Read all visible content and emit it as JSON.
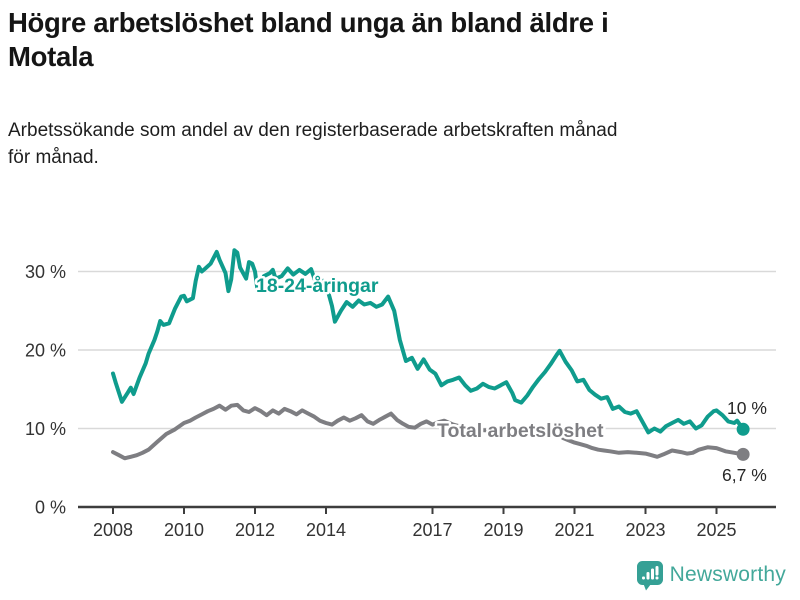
{
  "header": {
    "title_lines": [
      "Högre arbetslöshet bland unga än bland äldre i",
      "Motala"
    ],
    "subtitle_lines": [
      "Arbetssökande som andel av den registerbaserade arbetskraften månad",
      "för månad."
    ]
  },
  "chart_data": {
    "type": "line",
    "title": "Högre arbetslöshet bland unga än bland äldre i Motala",
    "subtitle": "Arbetssökande som andel av den registerbaserade arbetskraften månad för månad.",
    "grid": "horizontal",
    "legend_position": "inline-labels",
    "x_axis": {
      "ticks": [
        2008,
        2010,
        2012,
        2014,
        2017,
        2019,
        2021,
        2023,
        2025
      ],
      "range": [
        2007.0,
        2026.7
      ]
    },
    "y_axis": {
      "ticks": [
        0,
        10,
        20,
        30
      ],
      "tick_labels": [
        "0 %",
        "10 %",
        "20 %",
        "30 %"
      ],
      "range": [
        0,
        34
      ],
      "unit": "%"
    },
    "series": [
      {
        "id": "young",
        "name": "18-24-åringar",
        "color": "#0f9c8d",
        "end_label": "10 %",
        "points": [
          [
            2008.0,
            17.0
          ],
          [
            2008.08,
            15.8
          ],
          [
            2008.25,
            13.4
          ],
          [
            2008.42,
            14.6
          ],
          [
            2008.5,
            15.2
          ],
          [
            2008.58,
            14.4
          ],
          [
            2008.75,
            16.5
          ],
          [
            2008.92,
            18.3
          ],
          [
            2009.0,
            19.5
          ],
          [
            2009.17,
            21.3
          ],
          [
            2009.25,
            22.4
          ],
          [
            2009.33,
            23.7
          ],
          [
            2009.42,
            23.2
          ],
          [
            2009.58,
            23.4
          ],
          [
            2009.75,
            25.3
          ],
          [
            2009.92,
            26.8
          ],
          [
            2010.0,
            26.9
          ],
          [
            2010.08,
            26.2
          ],
          [
            2010.25,
            26.6
          ],
          [
            2010.33,
            28.8
          ],
          [
            2010.42,
            30.6
          ],
          [
            2010.5,
            30.0
          ],
          [
            2010.58,
            30.3
          ],
          [
            2010.75,
            31.0
          ],
          [
            2010.92,
            32.5
          ],
          [
            2011.0,
            31.5
          ],
          [
            2011.17,
            29.8
          ],
          [
            2011.25,
            27.5
          ],
          [
            2011.33,
            29.0
          ],
          [
            2011.42,
            32.7
          ],
          [
            2011.5,
            32.4
          ],
          [
            2011.58,
            30.5
          ],
          [
            2011.75,
            29.1
          ],
          [
            2011.83,
            31.2
          ],
          [
            2011.92,
            31.0
          ],
          [
            2012.0,
            30.0
          ],
          [
            2012.08,
            27.4
          ],
          [
            2012.25,
            29.4
          ],
          [
            2012.42,
            29.8
          ],
          [
            2012.5,
            30.2
          ],
          [
            2012.58,
            29.1
          ],
          [
            2012.75,
            29.4
          ],
          [
            2012.92,
            30.4
          ],
          [
            2013.08,
            29.6
          ],
          [
            2013.25,
            30.2
          ],
          [
            2013.42,
            29.7
          ],
          [
            2013.58,
            30.3
          ],
          [
            2013.75,
            28.1
          ],
          [
            2013.92,
            28.8
          ],
          [
            2014.0,
            28.4
          ],
          [
            2014.17,
            25.6
          ],
          [
            2014.25,
            23.6
          ],
          [
            2014.42,
            25.0
          ],
          [
            2014.58,
            26.1
          ],
          [
            2014.75,
            25.5
          ],
          [
            2014.92,
            26.3
          ],
          [
            2015.08,
            25.8
          ],
          [
            2015.25,
            26.0
          ],
          [
            2015.42,
            25.5
          ],
          [
            2015.58,
            25.8
          ],
          [
            2015.75,
            26.8
          ],
          [
            2015.92,
            25.0
          ],
          [
            2016.08,
            21.3
          ],
          [
            2016.25,
            18.6
          ],
          [
            2016.42,
            19.0
          ],
          [
            2016.58,
            17.6
          ],
          [
            2016.75,
            18.8
          ],
          [
            2016.92,
            17.5
          ],
          [
            2017.08,
            17.0
          ],
          [
            2017.25,
            15.5
          ],
          [
            2017.42,
            16.0
          ],
          [
            2017.58,
            16.2
          ],
          [
            2017.75,
            16.5
          ],
          [
            2017.92,
            15.5
          ],
          [
            2018.08,
            14.8
          ],
          [
            2018.25,
            15.1
          ],
          [
            2018.42,
            15.7
          ],
          [
            2018.58,
            15.3
          ],
          [
            2018.75,
            15.1
          ],
          [
            2018.92,
            15.5
          ],
          [
            2019.08,
            15.9
          ],
          [
            2019.25,
            14.5
          ],
          [
            2019.33,
            13.6
          ],
          [
            2019.5,
            13.3
          ],
          [
            2019.67,
            14.2
          ],
          [
            2019.83,
            15.3
          ],
          [
            2020.0,
            16.3
          ],
          [
            2020.17,
            17.2
          ],
          [
            2020.33,
            18.2
          ],
          [
            2020.5,
            19.4
          ],
          [
            2020.58,
            19.9
          ],
          [
            2020.75,
            18.5
          ],
          [
            2020.92,
            17.4
          ],
          [
            2021.08,
            16.0
          ],
          [
            2021.25,
            16.2
          ],
          [
            2021.42,
            14.9
          ],
          [
            2021.58,
            14.3
          ],
          [
            2021.75,
            13.8
          ],
          [
            2021.92,
            14.0
          ],
          [
            2022.08,
            12.5
          ],
          [
            2022.25,
            12.8
          ],
          [
            2022.42,
            12.1
          ],
          [
            2022.58,
            11.9
          ],
          [
            2022.75,
            12.2
          ],
          [
            2022.92,
            10.8
          ],
          [
            2023.08,
            9.5
          ],
          [
            2023.25,
            10.0
          ],
          [
            2023.42,
            9.6
          ],
          [
            2023.58,
            10.3
          ],
          [
            2023.75,
            10.7
          ],
          [
            2023.92,
            11.1
          ],
          [
            2024.08,
            10.6
          ],
          [
            2024.25,
            10.9
          ],
          [
            2024.42,
            10.0
          ],
          [
            2024.58,
            10.4
          ],
          [
            2024.75,
            11.5
          ],
          [
            2024.92,
            12.2
          ],
          [
            2025.0,
            12.3
          ],
          [
            2025.17,
            11.7
          ],
          [
            2025.33,
            10.9
          ],
          [
            2025.5,
            10.7
          ],
          [
            2025.58,
            11.0
          ],
          [
            2025.75,
            9.9
          ]
        ]
      },
      {
        "id": "total",
        "name": "Total arbetslöshet",
        "color": "#7e7e82",
        "end_label": "6,7 %",
        "points": [
          [
            2008.0,
            7.0
          ],
          [
            2008.17,
            6.6
          ],
          [
            2008.33,
            6.2
          ],
          [
            2008.5,
            6.4
          ],
          [
            2008.67,
            6.6
          ],
          [
            2008.83,
            6.9
          ],
          [
            2009.0,
            7.3
          ],
          [
            2009.25,
            8.3
          ],
          [
            2009.5,
            9.3
          ],
          [
            2009.75,
            9.9
          ],
          [
            2010.0,
            10.7
          ],
          [
            2010.17,
            11.0
          ],
          [
            2010.33,
            11.4
          ],
          [
            2010.5,
            11.8
          ],
          [
            2010.67,
            12.2
          ],
          [
            2010.83,
            12.5
          ],
          [
            2011.0,
            12.9
          ],
          [
            2011.17,
            12.4
          ],
          [
            2011.33,
            12.9
          ],
          [
            2011.5,
            13.0
          ],
          [
            2011.67,
            12.3
          ],
          [
            2011.83,
            12.1
          ],
          [
            2012.0,
            12.6
          ],
          [
            2012.17,
            12.2
          ],
          [
            2012.33,
            11.7
          ],
          [
            2012.5,
            12.3
          ],
          [
            2012.67,
            11.9
          ],
          [
            2012.83,
            12.5
          ],
          [
            2013.0,
            12.2
          ],
          [
            2013.17,
            11.8
          ],
          [
            2013.33,
            12.3
          ],
          [
            2013.5,
            11.9
          ],
          [
            2013.67,
            11.5
          ],
          [
            2013.83,
            11.0
          ],
          [
            2014.0,
            10.7
          ],
          [
            2014.17,
            10.5
          ],
          [
            2014.33,
            11.0
          ],
          [
            2014.5,
            11.4
          ],
          [
            2014.67,
            11.0
          ],
          [
            2014.83,
            11.3
          ],
          [
            2015.0,
            11.7
          ],
          [
            2015.17,
            10.9
          ],
          [
            2015.33,
            10.6
          ],
          [
            2015.5,
            11.1
          ],
          [
            2015.67,
            11.5
          ],
          [
            2015.83,
            11.9
          ],
          [
            2016.0,
            11.1
          ],
          [
            2016.17,
            10.6
          ],
          [
            2016.33,
            10.2
          ],
          [
            2016.5,
            10.1
          ],
          [
            2016.67,
            10.6
          ],
          [
            2016.83,
            10.9
          ],
          [
            2017.0,
            10.5
          ],
          [
            2017.17,
            10.8
          ],
          [
            2017.33,
            11.0
          ],
          [
            2017.58,
            10.5
          ],
          [
            2017.83,
            10.2
          ],
          [
            2018.08,
            10.0
          ],
          [
            2018.42,
            9.8
          ],
          [
            2018.75,
            9.7
          ],
          [
            2019.08,
            9.6
          ],
          [
            2019.42,
            9.4
          ],
          [
            2019.75,
            9.6
          ],
          [
            2020.0,
            9.9
          ],
          [
            2020.25,
            10.3
          ],
          [
            2020.5,
            9.6
          ],
          [
            2020.67,
            8.8
          ],
          [
            2020.83,
            8.5
          ],
          [
            2021.0,
            8.2
          ],
          [
            2021.17,
            8.0
          ],
          [
            2021.33,
            7.8
          ],
          [
            2021.5,
            7.5
          ],
          [
            2021.67,
            7.3
          ],
          [
            2021.83,
            7.2
          ],
          [
            2022.0,
            7.1
          ],
          [
            2022.25,
            6.9
          ],
          [
            2022.5,
            7.0
          ],
          [
            2022.75,
            6.9
          ],
          [
            2023.0,
            6.8
          ],
          [
            2023.17,
            6.6
          ],
          [
            2023.33,
            6.4
          ],
          [
            2023.5,
            6.7
          ],
          [
            2023.75,
            7.2
          ],
          [
            2024.0,
            7.0
          ],
          [
            2024.17,
            6.8
          ],
          [
            2024.33,
            6.9
          ],
          [
            2024.5,
            7.3
          ],
          [
            2024.75,
            7.6
          ],
          [
            2025.0,
            7.5
          ],
          [
            2025.25,
            7.1
          ],
          [
            2025.5,
            6.9
          ],
          [
            2025.75,
            6.7
          ]
        ]
      }
    ],
    "colors": {
      "grid": "#d9d9d9",
      "axis": "#3d3d3d",
      "tick_text": "#333333",
      "end_label_text": "#262626"
    }
  },
  "footer": {
    "brand": "Newsworthy",
    "brand_color": "#43a89a"
  }
}
